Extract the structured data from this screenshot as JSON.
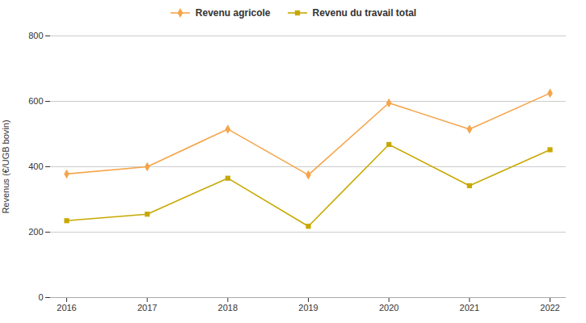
{
  "chart_data": {
    "type": "line",
    "x": [
      2016,
      2017,
      2018,
      2019,
      2020,
      2021,
      2022
    ],
    "series": [
      {
        "name": "Revenu agricole",
        "color": "#F5A54A",
        "marker": "diamond",
        "values": [
          378,
          400,
          515,
          375,
          595,
          515,
          625
        ]
      },
      {
        "name": "Revenu du travail total",
        "color": "#C8A800",
        "marker": "square",
        "values": [
          235,
          255,
          365,
          218,
          468,
          342,
          452
        ]
      }
    ],
    "ylabel": "Revenus (€/UGB bovin)",
    "xlim": [
      2016,
      2022
    ],
    "xticks": [
      2016,
      2017,
      2018,
      2019,
      2020,
      2021,
      2022
    ],
    "ylim": [
      0,
      800
    ],
    "yticks": [
      0,
      200,
      400,
      600,
      800
    ],
    "grid": "y",
    "legend": "top"
  }
}
